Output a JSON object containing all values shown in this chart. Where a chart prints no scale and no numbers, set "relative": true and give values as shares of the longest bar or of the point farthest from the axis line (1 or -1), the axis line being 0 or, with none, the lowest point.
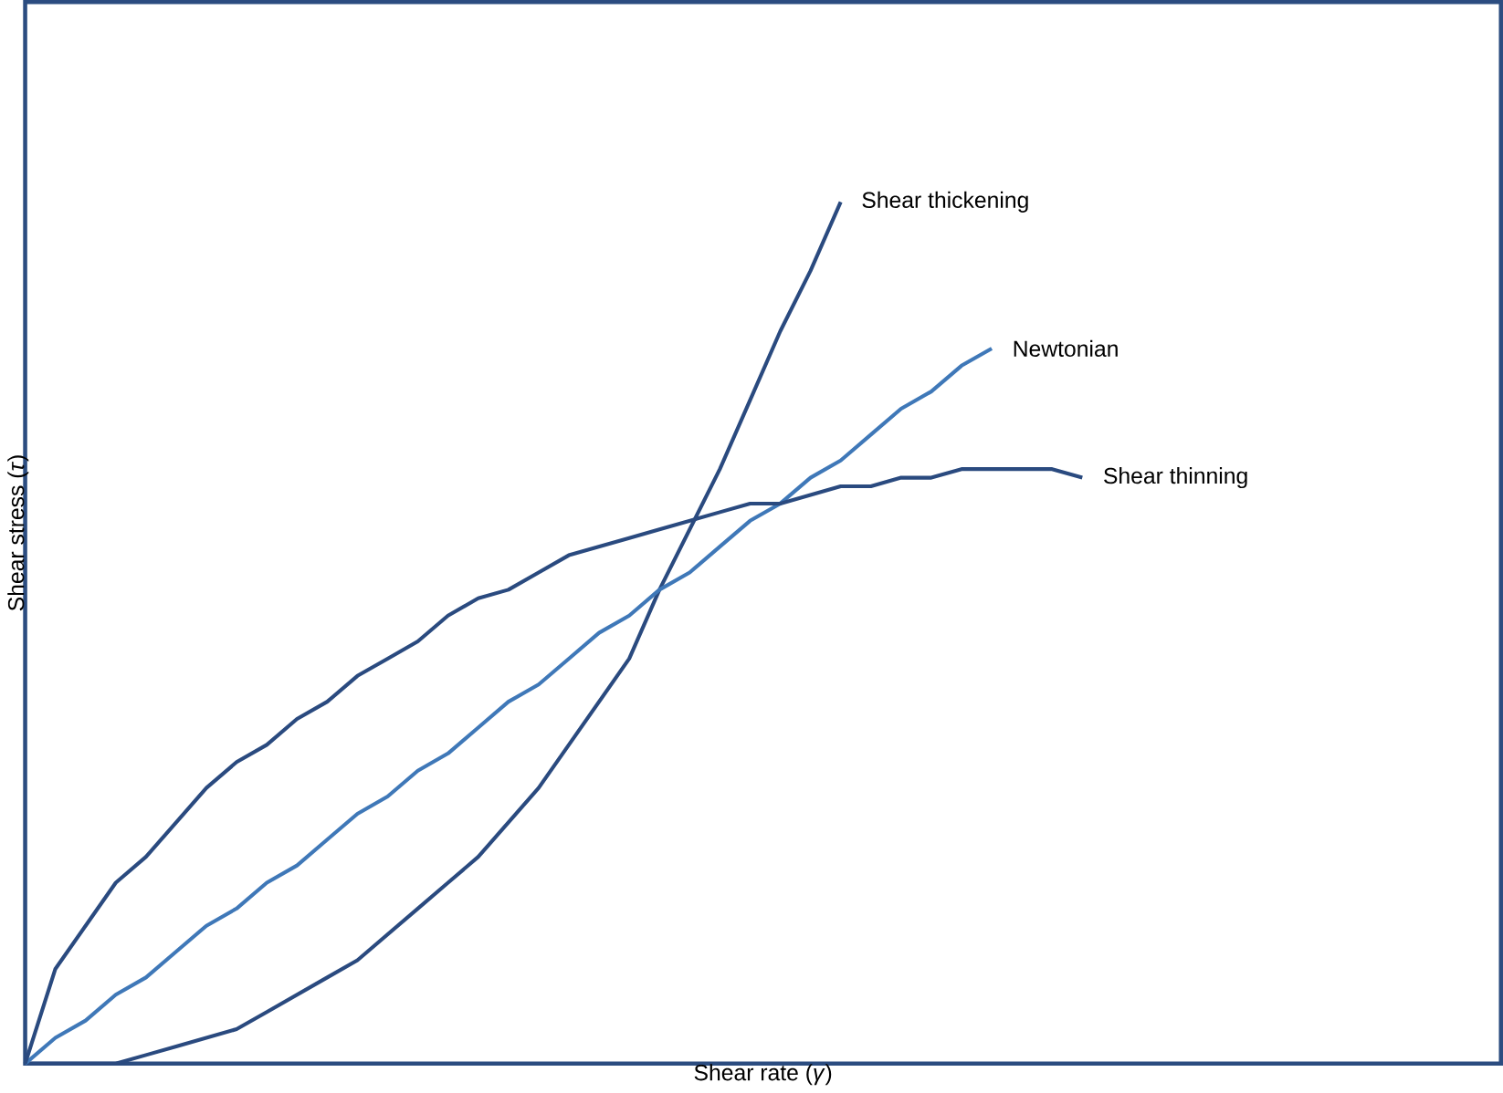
{
  "chart_data": {
    "type": "line",
    "xlabel": "Shear rate (*γ*)",
    "ylabel": "Shear stress (*τ*)",
    "relative": true,
    "marker": "none",
    "line_style": "solid",
    "categories": [
      null,
      null,
      null,
      null,
      null,
      null,
      null,
      null,
      null,
      null,
      null,
      null,
      null,
      null,
      null,
      null,
      null,
      null,
      null,
      null,
      null,
      null,
      null,
      null,
      null,
      null,
      null,
      null,
      null,
      null,
      null,
      null,
      null,
      null,
      null,
      null
    ],
    "series": [
      {
        "name": "Shear thickening",
        "color": "#2a4a7f",
        "values": [
          0,
          0,
          0,
          0,
          0.01,
          0.02,
          0.03,
          0.04,
          0.06,
          0.08,
          0.1,
          0.12,
          0.15,
          0.18,
          0.21,
          0.24,
          0.28,
          0.32,
          0.37,
          0.42,
          0.47,
          0.55,
          0.62,
          0.69,
          0.77,
          0.85,
          0.92,
          1,
          null,
          null,
          null,
          null,
          null,
          null,
          null,
          null
        ]
      },
      {
        "name": "Newtonian",
        "color": "#3f78b8",
        "values": [
          0,
          0.03,
          0.05,
          0.08,
          0.1,
          0.13,
          0.16,
          0.18,
          0.21,
          0.23,
          0.26,
          0.29,
          0.31,
          0.34,
          0.36,
          0.39,
          0.42,
          0.44,
          0.47,
          0.5,
          0.52,
          0.55,
          0.57,
          0.6,
          0.63,
          0.65,
          0.68,
          0.7,
          0.73,
          0.76,
          0.78,
          0.81,
          0.83,
          null,
          null,
          null
        ]
      },
      {
        "name": "Shear thinning",
        "color": "#2a4a7f",
        "values": [
          0,
          0.11,
          0.16,
          0.21,
          0.24,
          0.28,
          0.32,
          0.35,
          0.37,
          0.4,
          0.42,
          0.45,
          0.47,
          0.49,
          0.52,
          0.54,
          0.55,
          0.57,
          0.59,
          0.6,
          0.61,
          0.62,
          0.63,
          0.64,
          0.65,
          0.65,
          0.66,
          0.67,
          0.67,
          0.68,
          0.68,
          0.69,
          0.69,
          0.69,
          0.69,
          0.68
        ]
      }
    ]
  }
}
